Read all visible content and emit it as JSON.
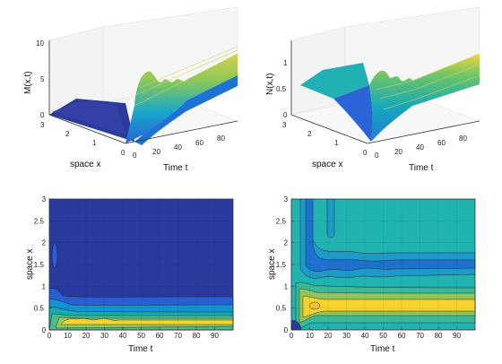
{
  "chart_data": [
    {
      "type": "surface",
      "title": "",
      "xlabel": "Time t",
      "ylabel": "space x",
      "zlabel": "M(x,t)",
      "x_ticks": [
        "0",
        "20",
        "40",
        "60",
        "80"
      ],
      "y_ticks": [
        "0",
        "1",
        "2",
        "3"
      ],
      "z_ticks": [
        "0",
        "5",
        "10"
      ],
      "xlim": [
        0,
        100
      ],
      "ylim": [
        0,
        3
      ],
      "zlim": [
        0,
        10
      ],
      "colormap": "parula",
      "grid": true
    },
    {
      "type": "surface",
      "title": "",
      "xlabel": "Time t",
      "ylabel": "space x",
      "zlabel": "N(x,t)",
      "x_ticks": [
        "0",
        "20",
        "40",
        "60",
        "80"
      ],
      "y_ticks": [
        "0",
        "1",
        "2",
        "3"
      ],
      "z_ticks": [
        "0",
        "0.5",
        "1"
      ],
      "xlim": [
        0,
        100
      ],
      "ylim": [
        0,
        3
      ],
      "zlim": [
        0,
        1.3
      ],
      "colormap": "parula",
      "grid": true
    },
    {
      "type": "contour",
      "title": "",
      "xlabel": "Time t",
      "ylabel": "space x",
      "x_ticks": [
        "0",
        "10",
        "20",
        "30",
        "40",
        "50",
        "60",
        "70",
        "80",
        "90"
      ],
      "y_ticks": [
        "0",
        "0.5",
        "1",
        "1.5",
        "2",
        "2.5",
        "3"
      ],
      "xlim": [
        0,
        100
      ],
      "ylim": [
        0,
        3
      ],
      "colormap": "parula",
      "band_centers": [
        0.27,
        0.25,
        0.25,
        0.25,
        0.25
      ],
      "levels_x_extent": [
        0.95,
        0.75,
        0.55,
        0.4,
        0.3,
        0.2
      ],
      "isolated_feature": {
        "t": 3,
        "x": 1.65
      }
    },
    {
      "type": "contour",
      "title": "",
      "xlabel": "Time t",
      "ylabel": "space x",
      "x_ticks": [
        "0",
        "10",
        "20",
        "30",
        "40",
        "50",
        "60",
        "70",
        "80",
        "90"
      ],
      "y_ticks": [
        "0",
        "0.5",
        "1",
        "1.5",
        "2",
        "2.5",
        "3"
      ],
      "xlim": [
        0,
        100
      ],
      "ylim": [
        0,
        3
      ],
      "colormap": "parula",
      "band_centers": [
        0.52,
        1.35
      ],
      "isolated_feature": {
        "t": 20,
        "x": 2.85
      }
    }
  ],
  "colors": {
    "dark_blue": "#2b3a9d",
    "blue": "#1f78d0",
    "teal": "#15a6b8",
    "cyan_teal": "#21b3b0",
    "green": "#6cc46a",
    "yellow": "#f6d32f",
    "gold": "#f2c13a"
  }
}
